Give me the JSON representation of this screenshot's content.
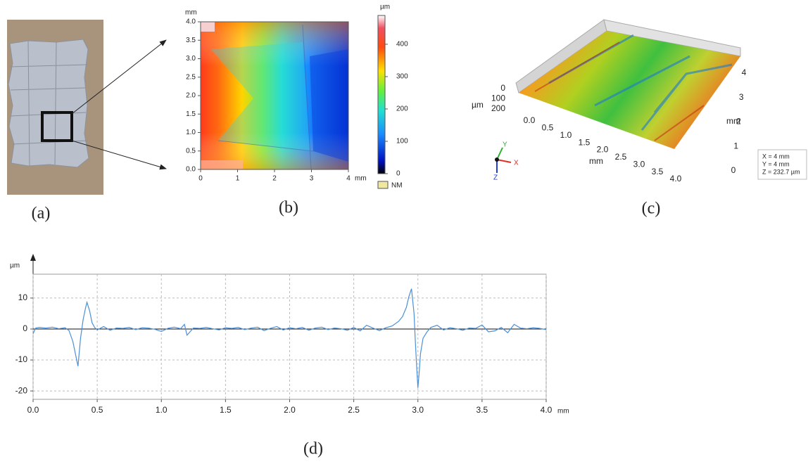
{
  "panel_labels": [
    "(a)",
    "(b)",
    "(c)",
    "(d)"
  ],
  "height_map": {
    "x_unit": "mm",
    "y_unit": "mm",
    "xlim": [
      0,
      4
    ],
    "xticks": [
      0,
      1,
      2,
      3,
      4
    ],
    "ylim": [
      0,
      4
    ],
    "yticks": [
      {
        "value": 0,
        "label": "0.0"
      },
      0.5,
      {
        "value": 1,
        "label": "1.0"
      },
      1.5,
      {
        "value": 2,
        "label": "2.0"
      },
      2.5,
      {
        "value": 3,
        "label": "3.0"
      },
      3.5,
      {
        "value": 4,
        "label": "4.0"
      }
    ],
    "colorbar": {
      "unit": "µm",
      "lim": [
        0,
        489
      ],
      "ticks": [
        0,
        100,
        200,
        300,
        400
      ],
      "no_measure_label": "NM"
    }
  },
  "surface_3d": {
    "z_unit": "µm",
    "z_ticks": [
      0,
      100,
      200
    ],
    "x_label": "mm",
    "x_ticks": [
      {
        "value": 0,
        "label": "0.0"
      },
      0.5,
      {
        "value": 1,
        "label": "1.0"
      },
      1.5,
      {
        "value": 2,
        "label": "2.0"
      },
      2.5,
      {
        "value": 3,
        "label": "3.0"
      },
      3.5,
      {
        "value": 4,
        "label": "4.0"
      }
    ],
    "y_label": "mm",
    "y_ticks": [
      0,
      1,
      2,
      3,
      4
    ],
    "axis_letters": [
      "X",
      "Y",
      "Z"
    ],
    "info": [
      "X = 4 mm",
      "Y = 4 mm",
      "Z = 232.7 µm"
    ]
  },
  "chart_data": {
    "type": "line",
    "y_label": "µm",
    "x_label": "mm",
    "xlim": [
      0,
      4
    ],
    "xticks": [
      {
        "value": 0,
        "label": "0.0"
      },
      0.5,
      {
        "value": 1,
        "label": "1.0"
      },
      1.5,
      {
        "value": 2,
        "label": "2.0"
      },
      2.5,
      {
        "value": 3,
        "label": "3.0"
      },
      3.5,
      {
        "value": 4,
        "label": "4.0"
      }
    ],
    "ylim": [
      -22.7,
      17.7
    ],
    "yticks": [
      -20,
      -10,
      0,
      10
    ],
    "grid": true,
    "series": [
      {
        "color": "#4a90d9",
        "x": [
          0.0,
          0.02,
          0.05,
          0.1,
          0.15,
          0.2,
          0.25,
          0.28,
          0.31,
          0.33,
          0.35,
          0.37,
          0.39,
          0.41,
          0.42,
          0.44,
          0.46,
          0.48,
          0.5,
          0.55,
          0.6,
          0.65,
          0.7,
          0.75,
          0.8,
          0.85,
          0.9,
          0.95,
          1.0,
          1.05,
          1.1,
          1.15,
          1.18,
          1.2,
          1.25,
          1.3,
          1.35,
          1.4,
          1.45,
          1.5,
          1.55,
          1.6,
          1.65,
          1.7,
          1.75,
          1.8,
          1.85,
          1.9,
          1.95,
          2.0,
          2.05,
          2.1,
          2.15,
          2.2,
          2.25,
          2.3,
          2.35,
          2.4,
          2.45,
          2.5,
          2.55,
          2.6,
          2.65,
          2.7,
          2.75,
          2.8,
          2.85,
          2.88,
          2.91,
          2.93,
          2.95,
          2.97,
          2.98,
          2.99,
          3.0,
          3.01,
          3.02,
          3.04,
          3.07,
          3.1,
          3.15,
          3.2,
          3.25,
          3.3,
          3.35,
          3.4,
          3.45,
          3.5,
          3.55,
          3.6,
          3.65,
          3.7,
          3.75,
          3.8,
          3.85,
          3.9,
          3.95,
          4.0
        ],
        "values": [
          -1.5,
          0.3,
          0.5,
          0.3,
          0.6,
          0.1,
          0.4,
          -0.5,
          -4,
          -8,
          -12,
          -3,
          3,
          7,
          8.6,
          6,
          2,
          0.5,
          -0.3,
          0.8,
          -0.4,
          0.3,
          0.2,
          0.5,
          -0.2,
          0.4,
          0.3,
          -0.1,
          -0.8,
          0.2,
          0.6,
          0.1,
          1.5,
          -2.0,
          0.3,
          0.2,
          0.5,
          0.1,
          -0.3,
          0.4,
          0.2,
          0.5,
          -0.2,
          0.3,
          0.6,
          -0.5,
          0.2,
          0.8,
          -0.3,
          0.4,
          0.1,
          0.5,
          -0.4,
          0.3,
          0.6,
          -0.2,
          0.3,
          0.1,
          -0.4,
          0.5,
          -0.6,
          1.2,
          0.3,
          -0.5,
          0.4,
          1.0,
          2.5,
          4,
          7,
          10.5,
          13,
          5,
          -4,
          -12,
          -19,
          -14,
          -8,
          -3,
          -1,
          0.5,
          1.2,
          -0.3,
          0.4,
          0.1,
          -0.4,
          0.3,
          0.2,
          1.3,
          -0.9,
          -0.6,
          0.5,
          -1.2,
          1.5,
          0.3,
          0.1,
          0.4,
          0.2,
          -0.2
        ]
      }
    ]
  }
}
